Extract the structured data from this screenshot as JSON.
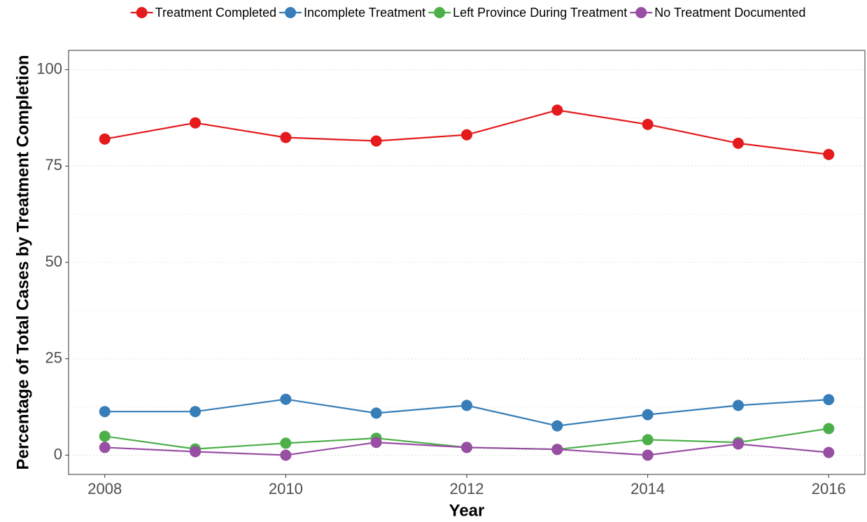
{
  "chart_data": {
    "type": "line",
    "x_label": "Year",
    "y_label": "Percentage of Total Cases by Treatment Completion",
    "x": [
      2008,
      2009,
      2010,
      2011,
      2012,
      2013,
      2014,
      2015,
      2016
    ],
    "series": [
      {
        "name": "Treatment Completed",
        "color": "#e41a1c",
        "values": [
          82.0,
          86.2,
          82.4,
          81.5,
          83.1,
          89.5,
          85.8,
          80.9,
          78.0
        ]
      },
      {
        "name": "Incomplete Treatment",
        "color": "#377eb8",
        "values": [
          11.3,
          11.3,
          14.5,
          10.9,
          12.9,
          7.6,
          10.5,
          12.9,
          14.4
        ]
      },
      {
        "name": "Left Province During Treatment",
        "color": "#4daf4a",
        "values": [
          4.9,
          1.6,
          3.1,
          4.4,
          2.0,
          1.5,
          4.0,
          3.3,
          6.9
        ]
      },
      {
        "name": "No Treatment Documented",
        "color": "#984ea3",
        "values": [
          2.0,
          0.9,
          0.0,
          3.3,
          2.0,
          1.5,
          0.0,
          2.9,
          0.7
        ]
      }
    ],
    "xlim": [
      2007.6,
      2016.4
    ],
    "xticks": [
      2008,
      2010,
      2012,
      2014,
      2016
    ],
    "ylim": [
      -5,
      105
    ],
    "yticks": [
      0,
      25,
      50,
      75,
      100
    ],
    "grid": true,
    "legend": "top"
  }
}
